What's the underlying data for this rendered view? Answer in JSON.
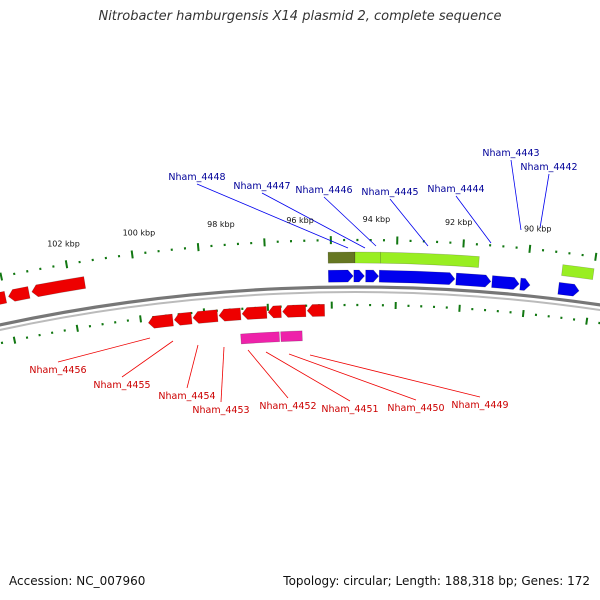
{
  "title": "Nitrobacter hamburgensis X14 plasmid 2, complete sequence",
  "footer": {
    "accession": "Accession: NC_007960",
    "summary": "Topology: circular; Length: 188,318 bp; Genes: 172"
  },
  "colors": {
    "forward_cds": "#0000ee",
    "reverse_cds": "#ee0000",
    "forward_label": "#000099",
    "reverse_label": "#cc0000",
    "feature_green": "#99ee22",
    "feature_olive": "#667722",
    "feature_pink": "#ee22aa",
    "tick_green": "#117711",
    "backbone": "#888888"
  },
  "kbp_labels": [
    "102 kbp",
    "100 kbp",
    "98 kbp",
    "96 kbp",
    "94 kbp",
    "92 kbp",
    "90 kbp"
  ],
  "gene_labels": {
    "forward": [
      "Nham_4448",
      "Nham_4447",
      "Nham_4446",
      "Nham_4445",
      "Nham_4444",
      "Nham_4443",
      "Nham_4442"
    ],
    "reverse": [
      "Nham_4456",
      "Nham_4455",
      "Nham_4454",
      "Nham_4453",
      "Nham_4452",
      "Nham_4451",
      "Nham_4450",
      "Nham_4449"
    ]
  }
}
